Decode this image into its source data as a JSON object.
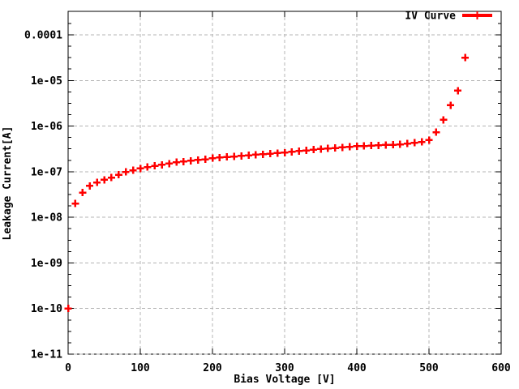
{
  "window": {
    "background": "#ffffff"
  },
  "chart_data": {
    "type": "scatter",
    "title": "",
    "xlabel": "Bias Voltage [V]",
    "ylabel": "Leakage Current[A]",
    "legend": {
      "label": "IV Curve",
      "position": "top-right-inside"
    },
    "grid": {
      "shown": true,
      "style": "dashed"
    },
    "x_axis": {
      "min": 0,
      "max": 600,
      "scale": "linear",
      "tick_interval": 100,
      "tick_labels": [
        "0",
        "100",
        "200",
        "300",
        "400",
        "500",
        "600"
      ]
    },
    "y_axis": {
      "min": 1e-11,
      "max": 0.00032,
      "scale": "log",
      "tick_labels": [
        "1e-11",
        "1e-10",
        "1e-09",
        "1e-08",
        "1e-07",
        "1e-06",
        "1e-05",
        "0.0001"
      ],
      "minor_ticks_per_decade": 3
    },
    "colors": {
      "series": "#ff0000",
      "grid": "#b4b4b4",
      "axis": "#000000",
      "text": "#000000",
      "background": "#ffffff"
    },
    "series": [
      {
        "name": "IV Curve",
        "marker": "plus",
        "x": [
          0,
          10,
          20,
          30,
          40,
          50,
          60,
          70,
          80,
          90,
          100,
          110,
          120,
          130,
          140,
          150,
          160,
          170,
          180,
          190,
          200,
          210,
          220,
          230,
          240,
          250,
          260,
          270,
          280,
          290,
          300,
          310,
          320,
          330,
          340,
          350,
          360,
          370,
          380,
          390,
          400,
          410,
          420,
          430,
          440,
          450,
          460,
          470,
          480,
          490,
          500,
          510,
          520,
          530,
          540,
          550
        ],
        "y": [
          1e-10,
          2e-08,
          3.5e-08,
          4.9e-08,
          5.8e-08,
          6.6e-08,
          7.4e-08,
          8.6e-08,
          9.9e-08,
          1.07e-07,
          1.18e-07,
          1.26e-07,
          1.34e-07,
          1.42e-07,
          1.51e-07,
          1.61e-07,
          1.67e-07,
          1.73e-07,
          1.8e-07,
          1.87e-07,
          1.98e-07,
          2.04e-07,
          2.1e-07,
          2.16e-07,
          2.22e-07,
          2.28e-07,
          2.35e-07,
          2.41e-07,
          2.48e-07,
          2.55e-07,
          2.62e-07,
          2.72e-07,
          2.82e-07,
          2.92e-07,
          3.03e-07,
          3.14e-07,
          3.23e-07,
          3.32e-07,
          3.41e-07,
          3.51e-07,
          3.61e-07,
          3.67e-07,
          3.73e-07,
          3.79e-07,
          3.86e-07,
          3.91e-07,
          3.99e-07,
          4.12e-07,
          4.29e-07,
          4.47e-07,
          4.9e-07,
          7.3e-07,
          1.37e-06,
          2.86e-06,
          5.96e-06,
          3.17e-05
        ]
      }
    ]
  }
}
